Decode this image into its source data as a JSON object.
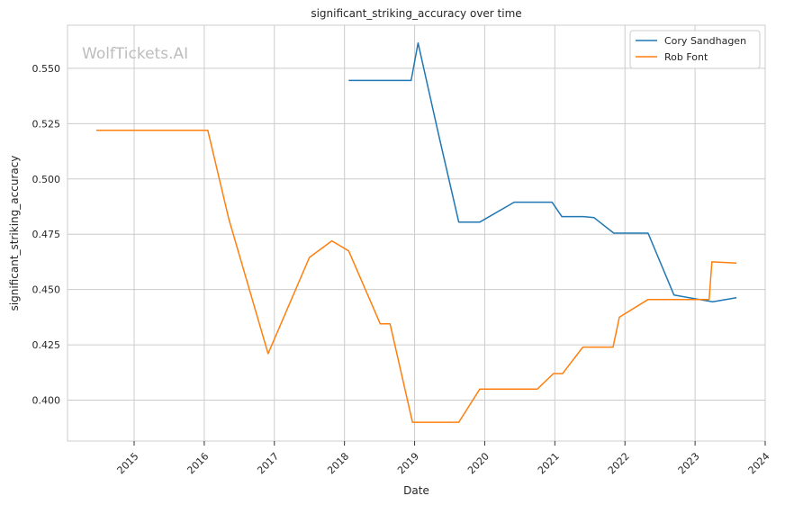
{
  "chart_data": {
    "type": "line",
    "title": "significant_striking_accuracy over time",
    "xlabel": "Date",
    "ylabel": "significant_striking_accuracy",
    "watermark": "WolfTickets.AI",
    "xlim": [
      2014.05,
      2024.0
    ],
    "ylim": [
      0.3815,
      0.5695
    ],
    "x_ticks": [
      2015,
      2016,
      2017,
      2018,
      2019,
      2020,
      2021,
      2022,
      2023,
      2024
    ],
    "x_tick_labels": [
      "2015",
      "2016",
      "2017",
      "2018",
      "2019",
      "2020",
      "2021",
      "2022",
      "2023",
      "2024"
    ],
    "y_ticks": [
      0.4,
      0.425,
      0.45,
      0.475,
      0.5,
      0.525,
      0.55
    ],
    "y_tick_labels": [
      "0.400",
      "0.425",
      "0.450",
      "0.475",
      "0.500",
      "0.525",
      "0.550"
    ],
    "grid": true,
    "legend_position": "top-right",
    "series": [
      {
        "name": "Cory Sandhagen",
        "color": "#1f77b4",
        "points": [
          [
            2018.06,
            0.5445
          ],
          [
            2018.95,
            0.5445
          ],
          [
            2019.05,
            0.5615
          ],
          [
            2019.35,
            0.519
          ],
          [
            2019.63,
            0.4805
          ],
          [
            2019.93,
            0.4805
          ],
          [
            2020.42,
            0.4895
          ],
          [
            2020.96,
            0.4895
          ],
          [
            2021.1,
            0.483
          ],
          [
            2021.41,
            0.483
          ],
          [
            2021.56,
            0.4825
          ],
          [
            2021.84,
            0.4755
          ],
          [
            2022.33,
            0.4755
          ],
          [
            2022.7,
            0.4475
          ],
          [
            2023.25,
            0.4445
          ],
          [
            2023.59,
            0.4463
          ]
        ]
      },
      {
        "name": "Rob Font",
        "color": "#ff7f0e",
        "points": [
          [
            2014.46,
            0.522
          ],
          [
            2016.05,
            0.522
          ],
          [
            2016.35,
            0.482
          ],
          [
            2016.91,
            0.421
          ],
          [
            2017.5,
            0.4645
          ],
          [
            2017.82,
            0.472
          ],
          [
            2018.06,
            0.4675
          ],
          [
            2018.51,
            0.4345
          ],
          [
            2018.65,
            0.4345
          ],
          [
            2018.97,
            0.39
          ],
          [
            2019.63,
            0.39
          ],
          [
            2019.93,
            0.405
          ],
          [
            2020.75,
            0.405
          ],
          [
            2020.98,
            0.412
          ],
          [
            2021.11,
            0.412
          ],
          [
            2021.4,
            0.424
          ],
          [
            2021.83,
            0.424
          ],
          [
            2021.92,
            0.4375
          ],
          [
            2022.33,
            0.4455
          ],
          [
            2023.2,
            0.4455
          ],
          [
            2023.24,
            0.4625
          ],
          [
            2023.59,
            0.462
          ]
        ]
      }
    ]
  }
}
